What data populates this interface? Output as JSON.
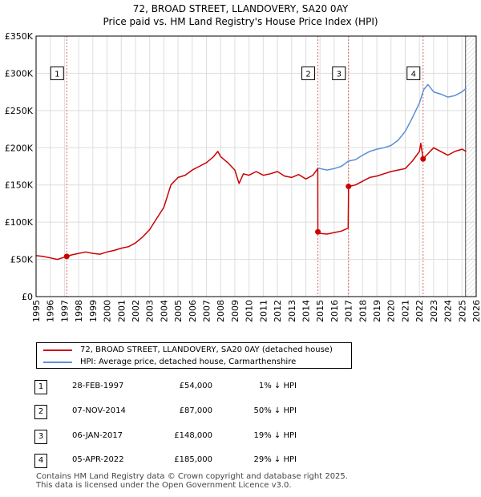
{
  "title_line1": "72, BROAD STREET, LLANDOVERY, SA20 0AY",
  "title_line2": "Price paid vs. HM Land Registry's House Price Index (HPI)",
  "colors": {
    "property": "#cc0000",
    "hpi": "#5b8fd6",
    "grid": "#dddddd",
    "marker_line": "#e06666"
  },
  "chart_data": {
    "type": "line",
    "xlim": [
      1995,
      2026
    ],
    "ylim": [
      0,
      350000
    ],
    "y_ticks": [
      0,
      50000,
      100000,
      150000,
      200000,
      250000,
      300000,
      350000
    ],
    "y_tick_labels": [
      "£0",
      "£50K",
      "£100K",
      "£150K",
      "£200K",
      "£250K",
      "£300K",
      "£350K"
    ],
    "x_ticks": [
      1995,
      1996,
      1997,
      1998,
      1999,
      2000,
      2001,
      2002,
      2003,
      2004,
      2005,
      2006,
      2007,
      2008,
      2009,
      2010,
      2011,
      2012,
      2013,
      2014,
      2015,
      2016,
      2017,
      2018,
      2019,
      2020,
      2021,
      2022,
      2023,
      2024,
      2025,
      2026
    ],
    "series": [
      {
        "name": "72, BROAD STREET, LLANDOVERY, SA20 0AY (detached house)",
        "x": [
          1995.0,
          1995.5,
          1996.0,
          1996.5,
          1997.0,
          1997.16,
          1997.5,
          1998.0,
          1998.5,
          1999.0,
          1999.5,
          2000.0,
          2000.5,
          2001.0,
          2001.5,
          2002.0,
          2002.5,
          2003.0,
          2003.5,
          2004.0,
          2004.5,
          2005.0,
          2005.5,
          2006.0,
          2006.5,
          2007.0,
          2007.5,
          2007.8,
          2008.0,
          2008.5,
          2009.0,
          2009.3,
          2009.6,
          2010.0,
          2010.5,
          2011.0,
          2011.5,
          2012.0,
          2012.5,
          2013.0,
          2013.5,
          2014.0,
          2014.5,
          2014.84,
          2014.85,
          2015.0,
          2015.5,
          2016.0,
          2016.5,
          2016.98,
          2017.01,
          2017.5,
          2018.0,
          2018.5,
          2019.0,
          2019.5,
          2020.0,
          2020.5,
          2021.0,
          2021.5,
          2022.0,
          2022.1,
          2022.26,
          2022.5,
          2023.0,
          2023.5,
          2024.0,
          2024.5,
          2025.0,
          2025.3
        ],
        "values": [
          55000,
          54000,
          52000,
          50000,
          53000,
          54000,
          56000,
          58000,
          60000,
          58000,
          57000,
          60000,
          62000,
          65000,
          67000,
          72000,
          80000,
          90000,
          105000,
          120000,
          150000,
          160000,
          163000,
          170000,
          175000,
          180000,
          188000,
          195000,
          188000,
          180000,
          170000,
          152000,
          165000,
          163000,
          168000,
          163000,
          165000,
          168000,
          162000,
          160000,
          164000,
          158000,
          163000,
          172000,
          87000,
          85000,
          84000,
          86000,
          88000,
          92000,
          148000,
          150000,
          155000,
          160000,
          162000,
          165000,
          168000,
          170000,
          172000,
          182000,
          195000,
          206000,
          185000,
          190000,
          200000,
          195000,
          190000,
          195000,
          198000,
          195000
        ]
      },
      {
        "name": "HPI: Average price, detached house, Carmarthenshire",
        "x": [
          2014.8,
          2015.0,
          2015.5,
          2016.0,
          2016.5,
          2017.0,
          2017.5,
          2018.0,
          2018.5,
          2019.0,
          2019.5,
          2020.0,
          2020.5,
          2021.0,
          2021.5,
          2022.0,
          2022.3,
          2022.6,
          2023.0,
          2023.5,
          2024.0,
          2024.5,
          2025.0,
          2025.3
        ],
        "values": [
          173000,
          172000,
          170000,
          172000,
          175000,
          182000,
          184000,
          190000,
          195000,
          198000,
          200000,
          203000,
          210000,
          222000,
          240000,
          260000,
          278000,
          285000,
          275000,
          272000,
          268000,
          270000,
          275000,
          280000
        ]
      }
    ],
    "transactions": [
      {
        "label": "1",
        "x": 1997.16,
        "price": 54000
      },
      {
        "label": "2",
        "x": 2014.85,
        "price": 87000
      },
      {
        "label": "3",
        "x": 2017.01,
        "price": 148000
      },
      {
        "label": "4",
        "x": 2022.26,
        "price": 185000
      }
    ],
    "marker_label_y": 300000
  },
  "legend": {
    "property": "72, BROAD STREET, LLANDOVERY, SA20 0AY (detached house)",
    "hpi": "HPI: Average price, detached house, Carmarthenshire"
  },
  "table": [
    {
      "num": "1",
      "date": "28-FEB-1997",
      "price": "£54,000",
      "hpi": "1% ↓ HPI"
    },
    {
      "num": "2",
      "date": "07-NOV-2014",
      "price": "£87,000",
      "hpi": "50% ↓ HPI"
    },
    {
      "num": "3",
      "date": "06-JAN-2017",
      "price": "£148,000",
      "hpi": "19% ↓ HPI"
    },
    {
      "num": "4",
      "date": "05-APR-2022",
      "price": "£185,000",
      "hpi": "29% ↓ HPI"
    }
  ],
  "footer_line1": "Contains HM Land Registry data © Crown copyright and database right 2025.",
  "footer_line2": "This data is licensed under the Open Government Licence v3.0."
}
